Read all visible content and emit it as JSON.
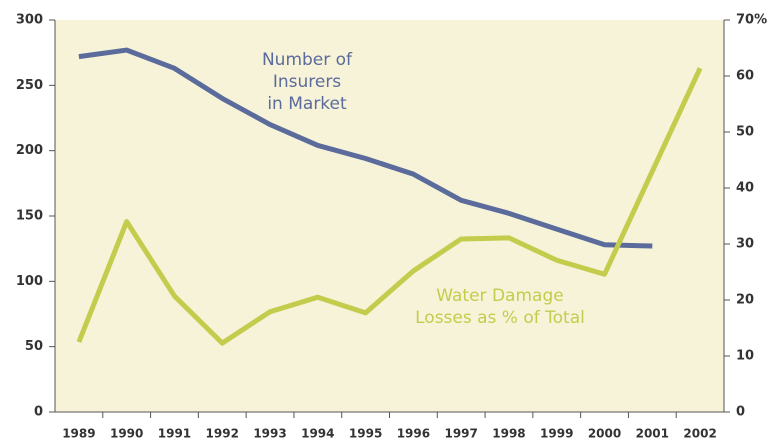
{
  "chart_data": {
    "type": "line",
    "categories": [
      "1989",
      "1990",
      "1991",
      "1992",
      "1993",
      "1994",
      "1995",
      "1996",
      "1997",
      "1998",
      "1999",
      "2000",
      "2001",
      "2002"
    ],
    "series": [
      {
        "label_lines": [
          "Number of",
          "Insurers",
          "in Market"
        ],
        "color": "#5b6b9b",
        "axis": "y",
        "values": [
          272,
          277,
          263,
          240,
          220,
          204,
          194,
          182,
          162,
          152,
          140,
          128,
          127,
          null
        ]
      },
      {
        "label_lines": [
          "Water Damage",
          "Losses as % of Total"
        ],
        "color": "#c3cc4c",
        "axis": "y2",
        "values": [
          12.5,
          34,
          20.7,
          12.3,
          17.9,
          20.5,
          17.7,
          25.2,
          30.9,
          31.1,
          27.1,
          24.6,
          43,
          61.4
        ]
      }
    ],
    "ylim": [
      0,
      300
    ],
    "yticks": [
      0,
      50,
      100,
      150,
      200,
      250,
      300
    ],
    "y2lim": [
      0,
      70
    ],
    "y2ticks": [
      0,
      10,
      20,
      30,
      40,
      50,
      60,
      {
        "value": 70,
        "label": "70%"
      }
    ]
  }
}
